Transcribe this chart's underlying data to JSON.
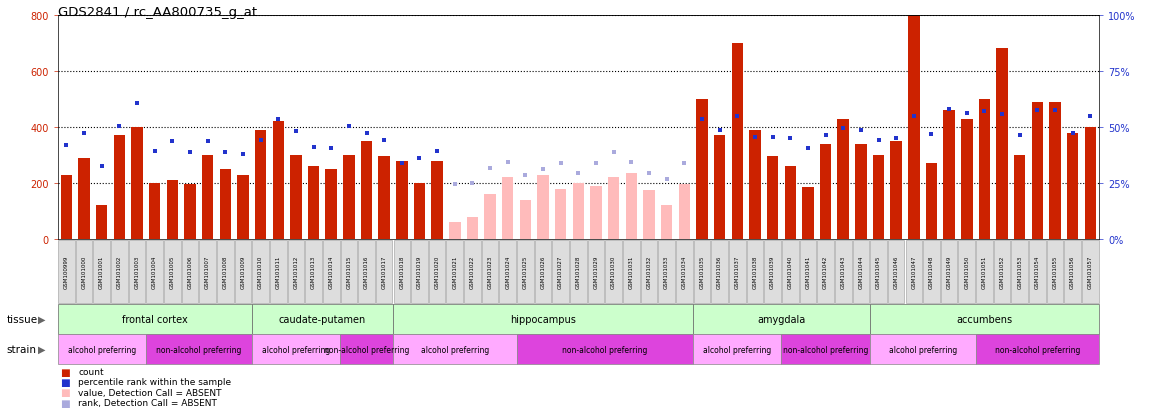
{
  "title": "GDS2841 / rc_AA800735_g_at",
  "sample_ids": [
    "GSM100999",
    "GSM101000",
    "GSM101001",
    "GSM101002",
    "GSM101003",
    "GSM101004",
    "GSM101005",
    "GSM101006",
    "GSM101007",
    "GSM101008",
    "GSM101009",
    "GSM101010",
    "GSM101011",
    "GSM101012",
    "GSM101013",
    "GSM101014",
    "GSM101015",
    "GSM101016",
    "GSM101017",
    "GSM101018",
    "GSM101019",
    "GSM101020",
    "GSM101021",
    "GSM101022",
    "GSM101023",
    "GSM101024",
    "GSM101025",
    "GSM101026",
    "GSM101027",
    "GSM101028",
    "GSM101029",
    "GSM101030",
    "GSM101031",
    "GSM101032",
    "GSM101033",
    "GSM101034",
    "GSM101035",
    "GSM101036",
    "GSM101037",
    "GSM101038",
    "GSM101039",
    "GSM101040",
    "GSM101041",
    "GSM101042",
    "GSM101043",
    "GSM101044",
    "GSM101045",
    "GSM101046",
    "GSM101047",
    "GSM101048",
    "GSM101049",
    "GSM101050",
    "GSM101051",
    "GSM101052",
    "GSM101053",
    "GSM101054",
    "GSM101055",
    "GSM101056",
    "GSM101057"
  ],
  "bar_values": [
    230,
    290,
    120,
    370,
    400,
    200,
    210,
    195,
    300,
    250,
    230,
    390,
    420,
    300,
    260,
    250,
    300,
    350,
    295,
    280,
    200,
    280,
    60,
    80,
    160,
    220,
    140,
    230,
    180,
    200,
    190,
    220,
    235,
    175,
    120,
    195,
    500,
    370,
    700,
    390,
    295,
    260,
    185,
    340,
    430,
    340,
    300,
    350,
    800,
    270,
    460,
    430,
    500,
    680,
    300,
    490,
    490,
    380,
    400
  ],
  "rank_values": [
    335,
    380,
    260,
    405,
    485,
    315,
    350,
    310,
    350,
    310,
    305,
    355,
    430,
    385,
    330,
    325,
    405,
    380,
    355,
    270,
    290,
    315,
    195,
    200,
    255,
    275,
    230,
    250,
    270,
    235,
    270,
    310,
    275,
    235,
    215,
    270,
    430,
    390,
    440,
    365,
    365,
    360,
    325,
    370,
    395,
    390,
    355,
    360,
    440,
    375,
    465,
    450,
    455,
    445,
    370,
    460,
    460,
    380,
    440
  ],
  "absent_bar": [
    false,
    false,
    false,
    false,
    false,
    false,
    false,
    false,
    false,
    false,
    false,
    false,
    false,
    false,
    false,
    false,
    false,
    false,
    false,
    false,
    false,
    false,
    true,
    true,
    true,
    true,
    true,
    true,
    true,
    true,
    true,
    true,
    true,
    true,
    true,
    true,
    false,
    false,
    false,
    false,
    false,
    false,
    false,
    false,
    false,
    false,
    false,
    false,
    false,
    false,
    false,
    false,
    false,
    false,
    false,
    false,
    false,
    false,
    false
  ],
  "absent_rank": [
    false,
    false,
    false,
    false,
    false,
    false,
    false,
    false,
    false,
    false,
    false,
    false,
    false,
    false,
    false,
    false,
    false,
    false,
    false,
    false,
    false,
    false,
    true,
    true,
    true,
    true,
    true,
    true,
    true,
    true,
    true,
    true,
    true,
    true,
    true,
    true,
    false,
    false,
    false,
    false,
    false,
    false,
    false,
    false,
    false,
    false,
    false,
    false,
    false,
    false,
    false,
    false,
    false,
    false,
    false,
    false,
    false,
    false,
    false
  ],
  "tissues": [
    {
      "label": "frontal cortex",
      "start": 0,
      "end": 10
    },
    {
      "label": "caudate-putamen",
      "start": 11,
      "end": 18
    },
    {
      "label": "hippocampus",
      "start": 19,
      "end": 35
    },
    {
      "label": "amygdala",
      "start": 36,
      "end": 45
    },
    {
      "label": "accumbens",
      "start": 46,
      "end": 58
    }
  ],
  "strains": [
    {
      "label": "alcohol preferring",
      "start": 0,
      "end": 4
    },
    {
      "label": "non-alcohol preferring",
      "start": 5,
      "end": 10
    },
    {
      "label": "alcohol preferring",
      "start": 11,
      "end": 15
    },
    {
      "label": "non-alcohol preferring",
      "start": 16,
      "end": 18
    },
    {
      "label": "alcohol preferring",
      "start": 19,
      "end": 25
    },
    {
      "label": "non-alcohol preferring",
      "start": 26,
      "end": 35
    },
    {
      "label": "alcohol preferring",
      "start": 36,
      "end": 40
    },
    {
      "label": "non-alcohol preferring",
      "start": 41,
      "end": 45
    },
    {
      "label": "alcohol preferring",
      "start": 46,
      "end": 51
    },
    {
      "label": "non-alcohol preferring",
      "start": 52,
      "end": 58
    }
  ],
  "ylim_left": [
    0,
    800
  ],
  "yticks_left": [
    0,
    200,
    400,
    600,
    800
  ],
  "yticks_right": [
    0,
    25,
    50,
    75,
    100
  ],
  "bar_color": "#cc2200",
  "absent_bar_color": "#ffbbbb",
  "rank_color": "#2233cc",
  "absent_rank_color": "#aaaadd",
  "tissue_color_light": "#ccffcc",
  "tissue_color_dark": "#88ee88",
  "alcohol_color": "#ffaaff",
  "nonalcohol_color": "#dd44dd",
  "label_box_color": "#dddddd"
}
